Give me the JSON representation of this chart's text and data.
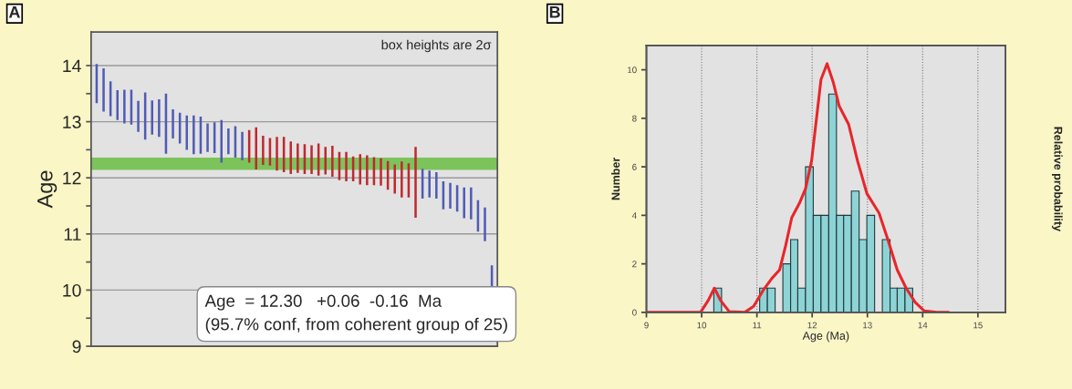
{
  "chart_data": [
    {
      "type": "bar",
      "title": "A",
      "ylabel": "Age",
      "categories": [
        null,
        null,
        null,
        null,
        null,
        null,
        null,
        null,
        null,
        null,
        null,
        null,
        null,
        null,
        null,
        null,
        null,
        null,
        null,
        null,
        null,
        null,
        null,
        null,
        null,
        null,
        null,
        null,
        null,
        null,
        null,
        null,
        null,
        null,
        null,
        null,
        null,
        null,
        null,
        null,
        null,
        null,
        null,
        null,
        null,
        null,
        null,
        null,
        null,
        null,
        null,
        null,
        null,
        null,
        null,
        null,
        null,
        null
      ],
      "base": [
        13.33,
        13.18,
        13.1,
        13.03,
        12.97,
        12.95,
        12.82,
        12.68,
        12.77,
        12.73,
        12.43,
        12.7,
        12.61,
        12.5,
        12.42,
        12.43,
        12.46,
        12.44,
        12.27,
        12.42,
        12.36,
        12.31,
        12.27,
        12.15,
        12.23,
        12.22,
        12.13,
        12.1,
        12.07,
        12.09,
        12.07,
        12.07,
        12.04,
        12.06,
        12.02,
        11.96,
        11.94,
        11.94,
        11.88,
        11.87,
        11.87,
        11.86,
        11.79,
        11.72,
        11.65,
        11.65,
        11.29,
        11.63,
        11.65,
        11.63,
        11.44,
        11.45,
        11.4,
        11.28,
        11.26,
        11.04,
        10.87,
        10.05
      ],
      "values": [
        0.7,
        0.77,
        0.62,
        0.53,
        0.6,
        0.62,
        0.55,
        0.84,
        0.61,
        0.67,
        1.07,
        0.52,
        0.55,
        0.61,
        0.69,
        0.66,
        0.51,
        0.55,
        0.76,
        0.46,
        0.56,
        0.51,
        0.58,
        0.75,
        0.52,
        0.49,
        0.6,
        0.63,
        0.58,
        0.52,
        0.53,
        0.51,
        0.57,
        0.49,
        0.55,
        0.5,
        0.52,
        0.44,
        0.54,
        0.53,
        0.5,
        0.49,
        0.51,
        0.52,
        0.64,
        0.61,
        1.26,
        0.53,
        0.48,
        0.47,
        0.5,
        0.46,
        0.47,
        0.55,
        0.57,
        0.56,
        0.6,
        0.39
      ],
      "colors": [
        "#4f5bb5",
        "#4f5bb5",
        "#4f5bb5",
        "#4f5bb5",
        "#4f5bb5",
        "#4f5bb5",
        "#4f5bb5",
        "#4f5bb5",
        "#4f5bb5",
        "#4f5bb5",
        "#4f5bb5",
        "#4f5bb5",
        "#4f5bb5",
        "#4f5bb5",
        "#4f5bb5",
        "#4f5bb5",
        "#4f5bb5",
        "#4f5bb5",
        "#4f5bb5",
        "#4f5bb5",
        "#4f5bb5",
        "#4f5bb5",
        "#c0282e",
        "#c0282e",
        "#c0282e",
        "#c0282e",
        "#c0282e",
        "#c0282e",
        "#c0282e",
        "#c0282e",
        "#c0282e",
        "#c0282e",
        "#c0282e",
        "#c0282e",
        "#c0282e",
        "#c0282e",
        "#c0282e",
        "#c0282e",
        "#c0282e",
        "#c0282e",
        "#c0282e",
        "#c0282e",
        "#c0282e",
        "#c0282e",
        "#c0282e",
        "#c0282e",
        "#c0282e",
        "#4f5bb5",
        "#4f5bb5",
        "#4f5bb5",
        "#4f5bb5",
        "#4f5bb5",
        "#4f5bb5",
        "#4f5bb5",
        "#4f5bb5",
        "#4f5bb5",
        "#4f5bb5",
        "#4f5bb5"
      ],
      "ylim": [
        9,
        14.6
      ],
      "yticks": [
        9,
        {
          "value": 9.5,
          "label": null
        },
        10,
        {
          "value": 10.5,
          "label": null
        },
        11,
        {
          "value": 11.5,
          "label": null
        },
        12,
        {
          "value": 12.5,
          "label": null
        },
        13,
        {
          "value": 13.5,
          "label": null
        },
        14
      ],
      "grid": "y",
      "bands": [
        {
          "axis": "y",
          "from": 12.14,
          "to": 12.36,
          "color": "#7dc35b"
        }
      ],
      "annotations": [
        "box heights are 2σ",
        "Age  = 12.30   +0.06  -0.16  Ma\n(95.7% conf, from coherent group of 25)"
      ]
    },
    {
      "type": "histogram",
      "title": "B",
      "xlabel": "Age (Ma)",
      "ylabel": "Number",
      "y2label": "Relative probability",
      "bins": [
        10.22,
        10.36,
        11.05,
        11.19,
        11.33,
        11.47,
        11.61,
        11.74,
        11.88,
        12.02,
        12.16,
        12.3,
        12.44,
        12.57,
        12.71,
        12.85,
        12.99,
        13.13,
        13.27,
        13.41,
        13.54,
        13.68,
        13.82
      ],
      "values": [
        1,
        0,
        1,
        1,
        0,
        2,
        3,
        1,
        6,
        4,
        4,
        9,
        4,
        4,
        5,
        3,
        4,
        0,
        3,
        1,
        1,
        1
      ],
      "color": "#8ed3d6",
      "xlim": [
        9,
        15.5
      ],
      "xticks": [
        9,
        10,
        11,
        12,
        13,
        14,
        15
      ],
      "ylim": [
        0,
        11
      ],
      "yticks": [
        0,
        2,
        4,
        6,
        8,
        10
      ],
      "grid": "x",
      "series": [
        {
          "type": "line",
          "color": "#e8262b",
          "x": [
            9.0,
            9.98,
            10.12,
            10.23,
            10.34,
            10.5,
            10.78,
            10.94,
            11.11,
            11.27,
            11.41,
            11.52,
            11.63,
            11.77,
            11.88,
            11.99,
            12.16,
            12.27,
            12.38,
            12.49,
            12.66,
            12.82,
            12.99,
            13.21,
            13.37,
            13.54,
            13.7,
            13.87,
            14.03,
            14.25,
            14.47
          ],
          "values": [
            0,
            0,
            0.5,
            1.0,
            0.5,
            0.03,
            0,
            0.25,
            0.9,
            1.4,
            1.75,
            2.75,
            3.9,
            4.5,
            5.1,
            6.25,
            9.6,
            10.25,
            9.5,
            8.5,
            7.75,
            6.25,
            4.9,
            4.1,
            3.0,
            1.75,
            1.0,
            0.4,
            0.06,
            0,
            0
          ]
        }
      ]
    }
  ]
}
